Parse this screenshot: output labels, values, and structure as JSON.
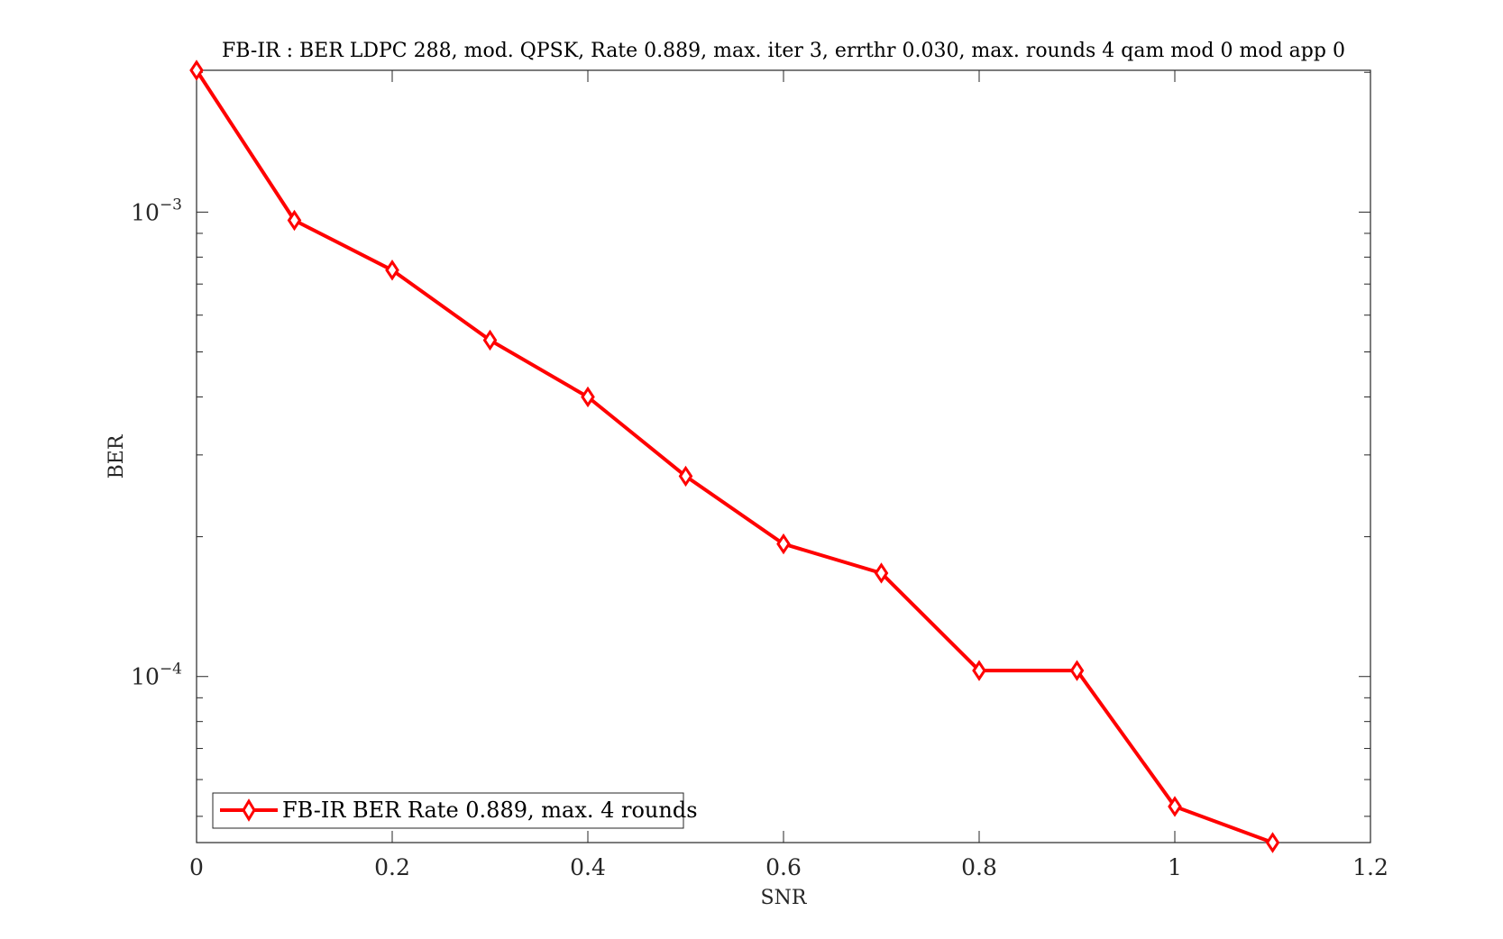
{
  "chart_data": {
    "type": "line",
    "title": "FB-IR : BER LDPC 288, mod. QPSK, Rate 0.889, max. iter 3, errthr 0.030, max. rounds 4 qam mod 0 mod app 0",
    "xlabel": "SNR",
    "ylabel": "BER",
    "xlim": [
      0,
      1.2
    ],
    "ylim": [
      4.39e-05,
      0.00202
    ],
    "yscale": "log",
    "grid": false,
    "legend_position": "bottom-left",
    "x_ticks": [
      "0",
      "0.2",
      "0.4",
      "0.6",
      "0.8",
      "1",
      "1.2"
    ],
    "y_ticks": [
      {
        "base": "10",
        "exp": "−3"
      },
      {
        "base": "10",
        "exp": "−4"
      }
    ],
    "series": [
      {
        "name": "FB-IR BER Rate 0.889, max. 4 rounds",
        "color": "#ff0000",
        "marker": "diamond",
        "x": [
          0,
          0.1,
          0.2,
          0.3,
          0.4,
          0.5,
          0.6,
          0.7,
          0.8,
          0.9,
          1.0,
          1.1
        ],
        "y": [
          0.00202,
          0.00096,
          0.00075,
          0.00053,
          0.0004,
          0.00027,
          0.000193,
          0.000167,
          0.000103,
          0.000103,
          5.25e-05,
          4.39e-05
        ]
      }
    ]
  }
}
